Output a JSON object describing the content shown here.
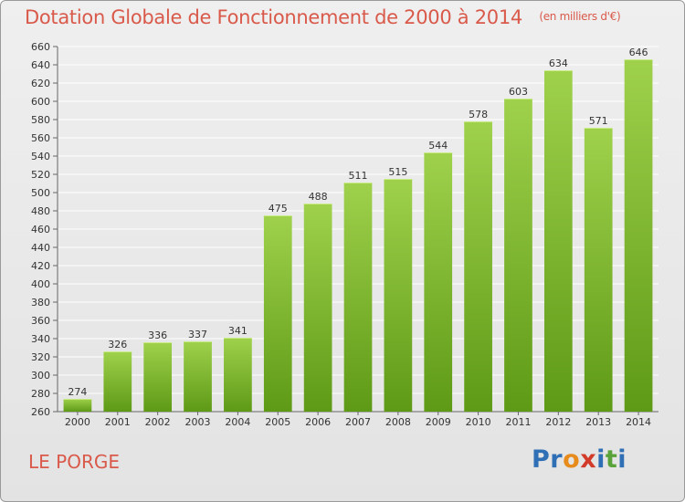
{
  "title": "Dotation Globale de Fonctionnement de 2000 à 2014",
  "unit_note": "(en milliers d'€)",
  "location": "LE PORGE",
  "logo": {
    "text": "Proxiti",
    "letters": [
      "P",
      "r",
      "o",
      "x",
      "i",
      "t",
      "i"
    ],
    "colors": [
      "#2f6fb5",
      "#2f6fb5",
      "#e78b1c",
      "#d23b2a",
      "#2f6fb5",
      "#5aa33a",
      "#2f6fb5"
    ]
  },
  "colors": {
    "title": "#d9594a",
    "bar_top": "#9fd14c",
    "bar_bottom": "#5e9a16",
    "grid": "#ffffff"
  },
  "chart_data": {
    "type": "bar",
    "categories": [
      "2000",
      "2001",
      "2002",
      "2003",
      "2004",
      "2005",
      "2006",
      "2007",
      "2008",
      "2009",
      "2010",
      "2011",
      "2012",
      "2013",
      "2014"
    ],
    "values": [
      274,
      326,
      336,
      337,
      341,
      475,
      488,
      511,
      515,
      544,
      578,
      603,
      634,
      571,
      646
    ],
    "ylim": [
      260,
      660
    ],
    "yticks": [
      260,
      280,
      300,
      320,
      340,
      360,
      380,
      400,
      420,
      440,
      460,
      480,
      500,
      520,
      540,
      560,
      580,
      600,
      620,
      640,
      660
    ],
    "grid": true,
    "data_labels": true
  }
}
